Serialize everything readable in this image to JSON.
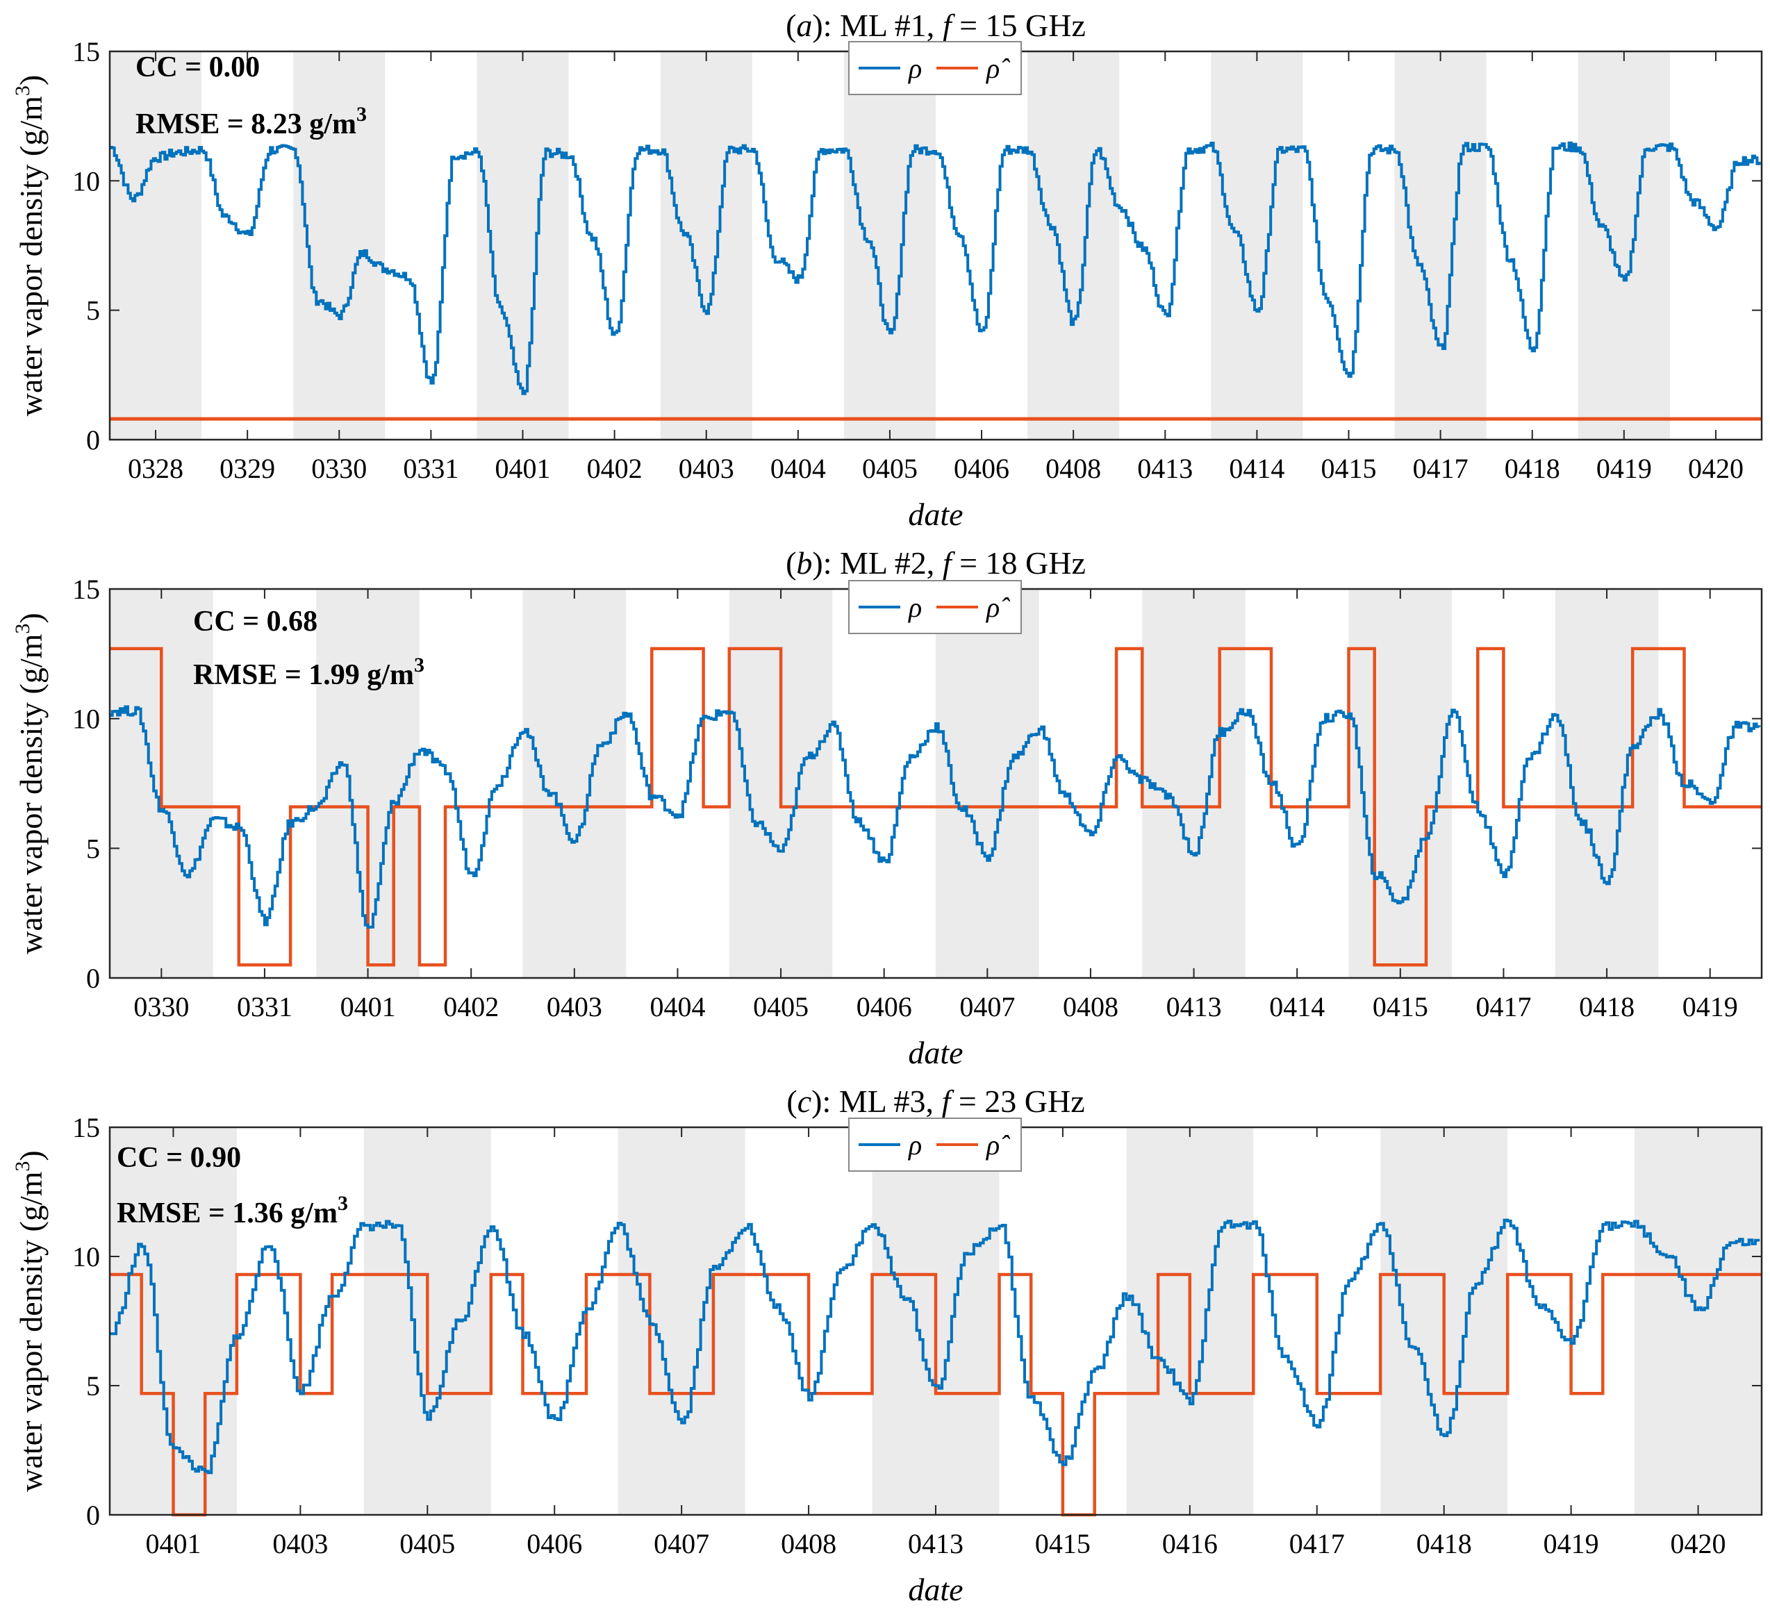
{
  "colors": {
    "rho": "#0072BD",
    "rho_hat": "#E8501E",
    "band": "#EBEBEB",
    "axis": "#262626"
  },
  "chart_data": [
    {
      "type": "line",
      "title_prefix": "(",
      "title_letter": "a",
      "title_mid": "): ML #1, ",
      "title_f": "f",
      "title_rest": " = 15 GHz",
      "xlabel": "date",
      "ylabel": "water vapor density (g/m3)",
      "ylim": [
        0,
        15
      ],
      "yticks": [
        "0",
        "5",
        "10",
        "15"
      ],
      "categories": [
        "0328",
        "0329",
        "0330",
        "0331",
        "0401",
        "0402",
        "0403",
        "0404",
        "0405",
        "0406",
        "0408",
        "0413",
        "0414",
        "0415",
        "0417",
        "0418",
        "0419",
        "0420"
      ],
      "shaded_days": [
        "0328",
        "0330",
        "0401",
        "0403",
        "0405",
        "0408",
        "0414",
        "0417",
        "0419"
      ],
      "annotations": {
        "cc": "CC = 0.00",
        "rmse": "RMSE = 8.23 g/m",
        "rmse_sup": "3"
      },
      "legend": [
        "ρ",
        "ρ̂"
      ],
      "series": [
        {
          "name": "ρ",
          "days": [
            [
              11.3,
              9.3,
              10.9,
              11.1
            ],
            [
              11.2,
              8.6,
              7.9,
              11.2
            ],
            [
              11.2,
              5.4,
              4.8,
              7.2
            ],
            [
              6.6,
              6.3,
              2.2,
              11.0
            ],
            [
              11.1,
              5.0,
              1.8,
              11.1
            ],
            [
              11.0,
              7.8,
              4.0,
              11.2
            ],
            [
              11.2,
              8.0,
              5.0,
              11.2
            ],
            [
              11.2,
              7.0,
              6.2,
              11.2
            ],
            [
              11.2,
              7.8,
              4.0,
              11.2
            ],
            [
              11.2,
              8.0,
              4.1,
              11.2
            ],
            [
              11.2,
              8.3,
              4.5,
              11.2
            ],
            [
              9.0,
              7.4,
              4.8,
              11.2
            ],
            [
              11.3,
              8.0,
              5.0,
              11.2
            ],
            [
              11.2,
              5.5,
              2.5,
              11.2
            ],
            [
              11.2,
              6.8,
              3.5,
              11.3
            ],
            [
              11.3,
              7.0,
              3.5,
              11.3
            ],
            [
              11.3,
              8.2,
              6.1,
              11.3
            ],
            [
              11.3,
              9.2,
              8.2,
              10.8
            ]
          ]
        },
        {
          "name": "ρ̂",
          "constant": 0.8
        }
      ]
    },
    {
      "type": "line",
      "title_prefix": "(",
      "title_letter": "b",
      "title_mid": "): ML #2, ",
      "title_f": "f",
      "title_rest": " = 18 GHz",
      "xlabel": "date",
      "ylabel": "water vapor density (g/m3)",
      "ylim": [
        0,
        15
      ],
      "yticks": [
        "0",
        "5",
        "10",
        "15"
      ],
      "categories": [
        "0330",
        "0331",
        "0401",
        "0402",
        "0403",
        "0404",
        "0405",
        "0406",
        "0407",
        "0408",
        "0413",
        "0414",
        "0415",
        "0417",
        "0418",
        "0419"
      ],
      "shaded_days": [
        "0330",
        "0401",
        "0403",
        "0405",
        "0407",
        "0413",
        "0415",
        "0418"
      ],
      "annotations": {
        "cc": "CC = 0.68",
        "rmse": "RMSE = 1.99 g/m",
        "rmse_sup": "3"
      },
      "legend": [
        "ρ",
        "ρ̂"
      ],
      "series": [
        {
          "name": "ρ",
          "days": [
            [
              10.3,
              10.3,
              6.5,
              4.0
            ],
            [
              6.1,
              5.8,
              2.2,
              6.0
            ],
            [
              6.6,
              8.3,
              1.9,
              6.8
            ],
            [
              8.8,
              8.0,
              4.0,
              7.5
            ],
            [
              9.6,
              7.2,
              5.3,
              9.0
            ],
            [
              10.2,
              7.0,
              6.3,
              10.0
            ],
            [
              10.3,
              6.0,
              4.9,
              8.5
            ],
            [
              9.7,
              6.0,
              4.5,
              8.5
            ],
            [
              9.7,
              6.5,
              4.7,
              8.5
            ],
            [
              9.6,
              7.0,
              5.5,
              8.5
            ],
            [
              7.6,
              7.0,
              4.8,
              9.5
            ],
            [
              10.3,
              7.5,
              5.0,
              10.0
            ],
            [
              10.2,
              4.0,
              2.9,
              5.5
            ],
            [
              10.3,
              6.5,
              4.0,
              8.5
            ],
            [
              10.1,
              6.0,
              3.8,
              9.0
            ],
            [
              10.2,
              7.5,
              6.8,
              9.7
            ]
          ]
        },
        {
          "name": "ρ̂",
          "levels": [
            0.5,
            6.6,
            12.7
          ],
          "days": [
            [
              2,
              2,
              1,
              1
            ],
            [
              1,
              0,
              0,
              1
            ],
            [
              1,
              1,
              0,
              1
            ],
            [
              0,
              1,
              1,
              1
            ],
            [
              1,
              1,
              1,
              1
            ],
            [
              1,
              2,
              2,
              1
            ],
            [
              2,
              2,
              1,
              1
            ],
            [
              1,
              1,
              1,
              1
            ],
            [
              1,
              1,
              1,
              1
            ],
            [
              1,
              1,
              1,
              2
            ],
            [
              1,
              1,
              1,
              2
            ],
            [
              2,
              1,
              1,
              1
            ],
            [
              2,
              0,
              0,
              1
            ],
            [
              1,
              2,
              1,
              1
            ],
            [
              1,
              1,
              1,
              2
            ],
            [
              2,
              1,
              1,
              1
            ]
          ]
        }
      ]
    },
    {
      "type": "line",
      "title_prefix": "(",
      "title_letter": "c",
      "title_mid": "): ML #3, ",
      "title_f": "f",
      "title_rest": " = 23 GHz",
      "xlabel": "date",
      "ylabel": "water vapor density (g/m3)",
      "ylim": [
        0,
        15
      ],
      "yticks": [
        "0",
        "5",
        "10",
        "15"
      ],
      "categories": [
        "0401",
        "0403",
        "0405",
        "0406",
        "0407",
        "0408",
        "0413",
        "0415",
        "0416",
        "0417",
        "0418",
        "0419",
        "0420"
      ],
      "shaded_days": [
        "0401",
        "0405",
        "0407",
        "0413",
        "0416",
        "0418",
        "0420"
      ],
      "annotations": {
        "cc": "CC = 0.90",
        "rmse": "RMSE = 1.36 g/m",
        "rmse_sup": "3"
      },
      "legend": [
        "ρ",
        "ρ̂"
      ],
      "series": [
        {
          "name": "ρ",
          "days": [
            [
              7.0,
              10.4,
              2.5,
              1.6
            ],
            [
              7.0,
              10.5,
              4.8,
              8.5
            ],
            [
              11.2,
              11.2,
              3.8,
              7.5
            ],
            [
              11.2,
              7.0,
              3.6,
              8.0
            ],
            [
              11.2,
              7.5,
              3.6,
              9.5
            ],
            [
              11.2,
              8.0,
              4.6,
              9.5
            ],
            [
              11.2,
              8.5,
              4.9,
              10.2
            ],
            [
              11.2,
              4.5,
              2.0,
              5.5
            ],
            [
              8.5,
              6.0,
              4.4,
              11.2
            ],
            [
              11.2,
              6.0,
              3.5,
              9.0
            ],
            [
              11.2,
              6.5,
              3.0,
              9.0
            ],
            [
              11.3,
              8.0,
              6.7,
              11.2
            ],
            [
              11.2,
              10.0,
              7.9,
              10.5
            ]
          ]
        },
        {
          "name": "ρ̂",
          "levels": [
            0.0,
            4.7,
            9.3
          ],
          "days": [
            [
              2,
              1,
              0,
              1
            ],
            [
              2,
              2,
              1,
              2
            ],
            [
              2,
              2,
              1,
              1
            ],
            [
              2,
              1,
              1,
              2
            ],
            [
              2,
              1,
              1,
              2
            ],
            [
              2,
              2,
              1,
              1
            ],
            [
              2,
              2,
              1,
              1
            ],
            [
              2,
              1,
              0,
              1
            ],
            [
              1,
              2,
              1,
              1
            ],
            [
              2,
              2,
              1,
              1
            ],
            [
              2,
              2,
              1,
              1
            ],
            [
              2,
              2,
              1,
              2
            ],
            [
              2,
              2,
              2,
              2
            ]
          ]
        }
      ]
    }
  ]
}
